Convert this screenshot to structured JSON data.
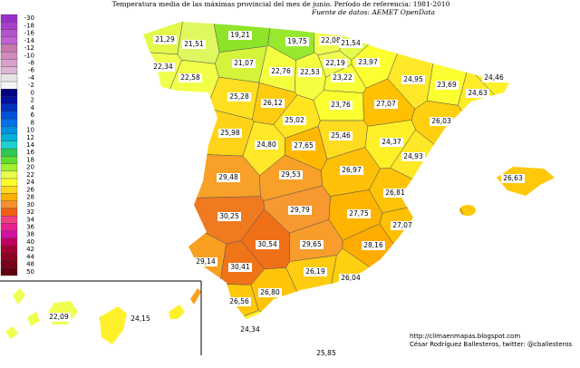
{
  "header": {
    "title": "Temperatura media de las máximas provincial del mes de junio. Período de referencia: 1981-2010",
    "source": "Fuente de datos: AEMET OpenData"
  },
  "legend": [
    {
      "label": "-30",
      "color": "#9a2fc8"
    },
    {
      "label": "-18",
      "color": "#a83fcc"
    },
    {
      "label": "-16",
      "color": "#b552cf"
    },
    {
      "label": "-14",
      "color": "#c062d2"
    },
    {
      "label": "-12",
      "color": "#c77ab0"
    },
    {
      "label": "-10",
      "color": "#cf8cbc"
    },
    {
      "label": "-8",
      "color": "#d8a0c8"
    },
    {
      "label": "-6",
      "color": "#e0b4d4"
    },
    {
      "label": "-4",
      "color": "#e6e6e6"
    },
    {
      "label": "-2",
      "color": "#f4f4f4"
    },
    {
      "label": "0",
      "color": "#000080"
    },
    {
      "label": "2",
      "color": "#0010a0"
    },
    {
      "label": "4",
      "color": "#0030c0"
    },
    {
      "label": "6",
      "color": "#0050d8"
    },
    {
      "label": "8",
      "color": "#0070e8"
    },
    {
      "label": "10",
      "color": "#0090e0"
    },
    {
      "label": "12",
      "color": "#00b0d8"
    },
    {
      "label": "14",
      "color": "#20d0d0"
    },
    {
      "label": "16",
      "color": "#30c850"
    },
    {
      "label": "18",
      "color": "#60dc30"
    },
    {
      "label": "20",
      "color": "#a0f030"
    },
    {
      "label": "22",
      "color": "#e8ff50"
    },
    {
      "label": "24",
      "color": "#ffff30"
    },
    {
      "label": "26",
      "color": "#ffd820"
    },
    {
      "label": "28",
      "color": "#ffb000"
    },
    {
      "label": "30",
      "color": "#f89030"
    },
    {
      "label": "32",
      "color": "#f06010"
    },
    {
      "label": "34",
      "color": "#f04080"
    },
    {
      "label": "36",
      "color": "#e82090"
    },
    {
      "label": "38",
      "color": "#d010a0"
    },
    {
      "label": "40",
      "color": "#c00060"
    },
    {
      "label": "42",
      "color": "#a00030"
    },
    {
      "label": "44",
      "color": "#8c0020"
    },
    {
      "label": "48",
      "color": "#780018"
    },
    {
      "label": "50",
      "color": "#600010"
    }
  ],
  "provinces": [
    {
      "label": "21,29",
      "color": "#e4f84a"
    },
    {
      "label": "21,51",
      "color": "#e0f860"
    },
    {
      "label": "19,21",
      "color": "#8ee428"
    },
    {
      "label": "19,75",
      "color": "#98e830"
    },
    {
      "label": "22,08",
      "color": "#f0ff50"
    },
    {
      "label": "21,54",
      "color": "#e4fa4c"
    },
    {
      "label": "22,34",
      "color": "#f0ff50"
    },
    {
      "label": "21,07",
      "color": "#d4f43c"
    },
    {
      "label": "22,76",
      "color": "#f4ff40"
    },
    {
      "label": "22,53",
      "color": "#f4ff40"
    },
    {
      "label": "22,19",
      "color": "#f0ff50"
    },
    {
      "label": "23,97",
      "color": "#fcff30"
    },
    {
      "label": "22,58",
      "color": "#f2ff48"
    },
    {
      "label": "23,22",
      "color": "#f8ff38"
    },
    {
      "label": "24,95",
      "color": "#ffe828"
    },
    {
      "label": "23,69",
      "color": "#fcff30"
    },
    {
      "label": "24,46",
      "color": "#fff028"
    },
    {
      "label": "24,63",
      "color": "#ffec28"
    },
    {
      "label": "25,28",
      "color": "#ffe020"
    },
    {
      "label": "26,12",
      "color": "#ffcc10"
    },
    {
      "label": "23,76",
      "color": "#fcff30"
    },
    {
      "label": "27,07",
      "color": "#ffc000"
    },
    {
      "label": "25,02",
      "color": "#ffe420"
    },
    {
      "label": "26,03",
      "color": "#ffd010"
    },
    {
      "label": "25,98",
      "color": "#ffd418"
    },
    {
      "label": "25,46",
      "color": "#ffdc20"
    },
    {
      "label": "24,37",
      "color": "#fff028"
    },
    {
      "label": "24,80",
      "color": "#ffe828"
    },
    {
      "label": "27,65",
      "color": "#ffb800"
    },
    {
      "label": "24,93",
      "color": "#ffe828"
    },
    {
      "label": "26,97",
      "color": "#ffc008"
    },
    {
      "label": "29,48",
      "color": "#f8a028"
    },
    {
      "label": "29,53",
      "color": "#f8a028"
    },
    {
      "label": "26,81",
      "color": "#ffc408"
    },
    {
      "label": "26,63",
      "color": "#ffc808"
    },
    {
      "label": "29,79",
      "color": "#f89830"
    },
    {
      "label": "27,75",
      "color": "#ffb400"
    },
    {
      "label": "30,25",
      "color": "#f07a20"
    },
    {
      "label": "27,07",
      "color": "#ffc000"
    },
    {
      "label": "30,54",
      "color": "#f07018"
    },
    {
      "label": "29,65",
      "color": "#f89c2c"
    },
    {
      "label": "28,16",
      "color": "#ffac00"
    },
    {
      "label": "29,14",
      "color": "#faa020"
    },
    {
      "label": "30,41",
      "color": "#f07418"
    },
    {
      "label": "26,19",
      "color": "#ffcc10"
    },
    {
      "label": "26,04",
      "color": "#ffd010"
    },
    {
      "label": "26,80",
      "color": "#ffc408"
    },
    {
      "label": "26,56",
      "color": "#ffc808"
    },
    {
      "label": "24,34",
      "color": "#fff028"
    },
    {
      "label": "22,09",
      "color": "#f0ff50"
    },
    {
      "label": "24,15",
      "color": "#fff02c"
    }
  ],
  "average": "25,85",
  "footer": {
    "url": "http://climaenmapas.blogspot.com",
    "author": "César Rodríguez Ballesteros, twitter: @cballesteros"
  }
}
